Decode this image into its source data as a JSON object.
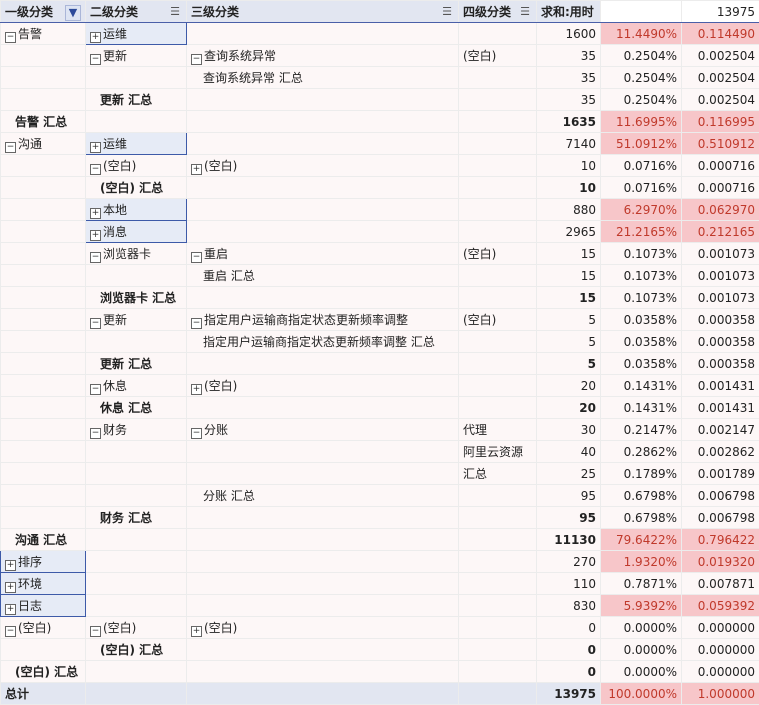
{
  "header": {
    "c1": "一级分类",
    "c2": "二级分类",
    "c3": "三级分类",
    "c4": "四级分类",
    "c5": "求和:用时",
    "c7": "13975"
  },
  "icons": {
    "expand": "⊞",
    "collapse": "⊟",
    "filter_active": "funnel-icon",
    "filter": "filter-lines-icon"
  },
  "rows": [
    {
      "c1": "告警",
      "e1": "-",
      "c2": "运维",
      "e2": "+",
      "b2": true,
      "c3": "",
      "c4": "",
      "v": "1600",
      "p": "11.4490%",
      "d": "0.114490",
      "hl": true
    },
    {
      "c1": "",
      "c2": "更新",
      "e2": "-",
      "c3": "查询系统异常",
      "e3": "-",
      "c4": "(空白)",
      "v": "35",
      "p": "0.2504%",
      "d": "0.002504"
    },
    {
      "c1": "",
      "c2": "",
      "c3": "查询系统异常 汇总",
      "i3": true,
      "c4": "",
      "v": "35",
      "p": "0.2504%",
      "d": "0.002504"
    },
    {
      "c1": "",
      "c2": "更新 汇总",
      "i2": true,
      "c3": "",
      "c4": "",
      "v": "35",
      "p": "0.2504%",
      "d": "0.002504"
    },
    {
      "c1": "告警 汇总",
      "i1": true,
      "t1": true,
      "c2": "",
      "c3": "",
      "c4": "",
      "v": "1635",
      "vb": true,
      "p": "11.6995%",
      "d": "0.116995",
      "hl": true
    },
    {
      "c1": "沟通",
      "e1": "-",
      "c2": "运维",
      "e2": "+",
      "b2": true,
      "c3": "",
      "c4": "",
      "v": "7140",
      "p": "51.0912%",
      "d": "0.510912",
      "hl": true
    },
    {
      "c1": "",
      "c2": "(空白)",
      "e2": "-",
      "c3": "(空白)",
      "e3": "+",
      "c4": "",
      "v": "10",
      "p": "0.0716%",
      "d": "0.000716"
    },
    {
      "c1": "",
      "c2": "(空白) 汇总",
      "i2": true,
      "c3": "",
      "c4": "",
      "v": "10",
      "vb": true,
      "p": "0.0716%",
      "d": "0.000716"
    },
    {
      "c1": "",
      "c2": "本地",
      "e2": "+",
      "b2": true,
      "c3": "",
      "c4": "",
      "v": "880",
      "p": "6.2970%",
      "d": "0.062970",
      "hl": true
    },
    {
      "c1": "",
      "c2": "消息",
      "e2": "+",
      "b2": true,
      "c3": "",
      "c4": "",
      "v": "2965",
      "p": "21.2165%",
      "d": "0.212165",
      "hl": true
    },
    {
      "c1": "",
      "c2": "浏览器卡",
      "e2": "-",
      "c3": "重启",
      "e3": "-",
      "c4": "(空白)",
      "v": "15",
      "p": "0.1073%",
      "d": "0.001073"
    },
    {
      "c1": "",
      "c2": "",
      "c3": "重启 汇总",
      "i3": true,
      "c4": "",
      "v": "15",
      "p": "0.1073%",
      "d": "0.001073"
    },
    {
      "c1": "",
      "c2": "浏览器卡 汇总",
      "i2": true,
      "c3": "",
      "c4": "",
      "v": "15",
      "vb": true,
      "p": "0.1073%",
      "d": "0.001073"
    },
    {
      "c1": "",
      "c2": "更新",
      "e2": "-",
      "c3": "指定用户运输商指定状态更新频率调整",
      "e3": "-",
      "c4": "(空白)",
      "v": "5",
      "p": "0.0358%",
      "d": "0.000358"
    },
    {
      "c1": "",
      "c2": "",
      "c3": "指定用户运输商指定状态更新频率调整 汇总",
      "i3": true,
      "c4": "",
      "v": "5",
      "p": "0.0358%",
      "d": "0.000358"
    },
    {
      "c1": "",
      "c2": "更新 汇总",
      "i2": true,
      "c3": "",
      "c4": "",
      "v": "5",
      "vb": true,
      "p": "0.0358%",
      "d": "0.000358"
    },
    {
      "c1": "",
      "c2": "休息",
      "e2": "-",
      "c3": "(空白)",
      "e3": "+",
      "c4": "",
      "v": "20",
      "p": "0.1431%",
      "d": "0.001431"
    },
    {
      "c1": "",
      "c2": "休息 汇总",
      "i2": true,
      "c3": "",
      "c4": "",
      "v": "20",
      "vb": true,
      "p": "0.1431%",
      "d": "0.001431"
    },
    {
      "c1": "",
      "c2": "财务",
      "e2": "-",
      "c3": "分账",
      "e3": "-",
      "c4": "代理",
      "v": "30",
      "p": "0.2147%",
      "d": "0.002147"
    },
    {
      "c1": "",
      "c2": "",
      "c3": "",
      "c4": "阿里云资源",
      "v": "40",
      "p": "0.2862%",
      "d": "0.002862"
    },
    {
      "c1": "",
      "c2": "",
      "c3": "",
      "c4": "汇总",
      "v": "25",
      "p": "0.1789%",
      "d": "0.001789"
    },
    {
      "c1": "",
      "c2": "",
      "c3": "分账 汇总",
      "i3": true,
      "c4": "",
      "v": "95",
      "p": "0.6798%",
      "d": "0.006798"
    },
    {
      "c1": "",
      "c2": "财务 汇总",
      "i2": true,
      "c3": "",
      "c4": "",
      "v": "95",
      "vb": true,
      "p": "0.6798%",
      "d": "0.006798"
    },
    {
      "c1": "沟通 汇总",
      "i1": true,
      "t1": true,
      "c2": "",
      "c3": "",
      "c4": "",
      "v": "11130",
      "vb": true,
      "p": "79.6422%",
      "d": "0.796422",
      "hl": true
    },
    {
      "c1": "排序",
      "e1": "+",
      "b1": true,
      "c2": "",
      "c3": "",
      "c4": "",
      "v": "270",
      "p": "1.9320%",
      "d": "0.019320",
      "hl": true
    },
    {
      "c1": "环境",
      "e1": "+",
      "b1": true,
      "c2": "",
      "c3": "",
      "c4": "",
      "v": "110",
      "p": "0.7871%",
      "d": "0.007871"
    },
    {
      "c1": "日志",
      "e1": "+",
      "b1": true,
      "c2": "",
      "c3": "",
      "c4": "",
      "v": "830",
      "p": "5.9392%",
      "d": "0.059392",
      "hl": true
    },
    {
      "c1": "(空白)",
      "e1": "-",
      "c2": "(空白)",
      "e2": "-",
      "c3": "(空白)",
      "e3": "+",
      "c4": "",
      "v": "0",
      "p": "0.0000%",
      "d": "0.000000"
    },
    {
      "c1": "",
      "c2": "(空白) 汇总",
      "i2": true,
      "c3": "",
      "c4": "",
      "v": "0",
      "vb": true,
      "p": "0.0000%",
      "d": "0.000000"
    },
    {
      "c1": "(空白) 汇总",
      "i1": true,
      "t1": true,
      "c2": "",
      "c3": "",
      "c4": "",
      "v": "0",
      "vb": true,
      "p": "0.0000%",
      "d": "0.000000"
    }
  ],
  "grand_total": {
    "label": "总计",
    "v": "13975",
    "p": "100.0000%",
    "d": "1.000000"
  }
}
